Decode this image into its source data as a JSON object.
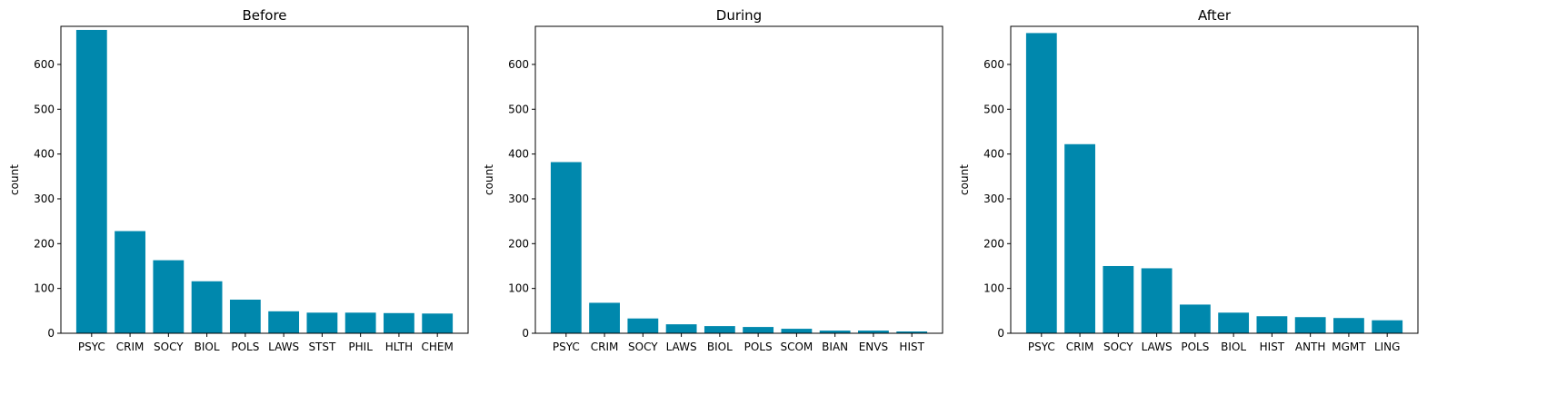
{
  "bar_color": "#0088ad",
  "chart_data": [
    {
      "type": "bar",
      "title": "Before",
      "xlabel": "",
      "ylabel": "count",
      "ylim": [
        0,
        685
      ],
      "yticks": [
        0,
        100,
        200,
        300,
        400,
        500,
        600
      ],
      "categories": [
        "PSYC",
        "CRIM",
        "SOCY",
        "BIOL",
        "POLS",
        "LAWS",
        "STST",
        "PHIL",
        "HLTH",
        "CHEM"
      ],
      "values": [
        677,
        228,
        163,
        116,
        75,
        49,
        46,
        46,
        45,
        44
      ]
    },
    {
      "type": "bar",
      "title": "During",
      "xlabel": "",
      "ylabel": "count",
      "ylim": [
        0,
        685
      ],
      "yticks": [
        0,
        100,
        200,
        300,
        400,
        500,
        600
      ],
      "categories": [
        "PSYC",
        "CRIM",
        "SOCY",
        "LAWS",
        "BIOL",
        "POLS",
        "SCOM",
        "BIAN",
        "ENVS",
        "HIST"
      ],
      "values": [
        382,
        68,
        33,
        20,
        16,
        14,
        10,
        6,
        6,
        4
      ]
    },
    {
      "type": "bar",
      "title": "After",
      "xlabel": "",
      "ylabel": "count",
      "ylim": [
        0,
        685
      ],
      "yticks": [
        0,
        100,
        200,
        300,
        400,
        500,
        600
      ],
      "categories": [
        "PSYC",
        "CRIM",
        "SOCY",
        "LAWS",
        "POLS",
        "BIOL",
        "HIST",
        "ANTH",
        "MGMT",
        "LING"
      ],
      "values": [
        670,
        422,
        150,
        145,
        64,
        46,
        38,
        36,
        34,
        29
      ]
    }
  ]
}
